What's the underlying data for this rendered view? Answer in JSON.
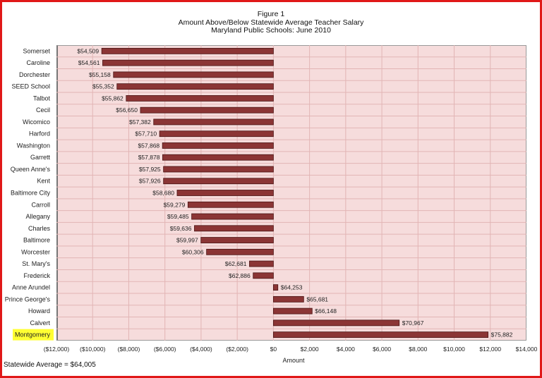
{
  "chart_data": {
    "type": "bar",
    "orientation": "horizontal",
    "title": "Figure 1",
    "subtitle": [
      "Amount Above/Below Statewide Average Teacher Salary",
      "Maryland Public Schools:  June 2010"
    ],
    "xlabel": "Amount",
    "ylabel": "",
    "xlim": [
      -12000,
      14000
    ],
    "xticks": [
      -12000,
      -10000,
      -8000,
      -6000,
      -4000,
      -2000,
      0,
      2000,
      4000,
      6000,
      8000,
      10000,
      12000,
      14000
    ],
    "xtick_labels": [
      "($12,000)",
      "($10,000)",
      "($8,000)",
      "($6,000)",
      "($4,000)",
      "($2,000)",
      "$0",
      "$2,000",
      "$4,000",
      "$6,000",
      "$8,000",
      "$10,000",
      "$12,000",
      "$14,000"
    ],
    "grid": true,
    "categories": [
      "Somerset",
      "Caroline",
      "Dorchester",
      "SEED School",
      "Talbot",
      "Cecil",
      "Wicomico",
      "Harford",
      "Washington",
      "Garrett",
      "Queen Anne's",
      "Kent",
      "Baltimore City",
      "Carroll",
      "Allegany",
      "Charles",
      "Baltimore",
      "Worcester",
      "St. Mary's",
      "Frederick",
      "Anne Arundel",
      "Prince George's",
      "Howard",
      "Calvert",
      "Montgomery"
    ],
    "values": [
      -9496,
      -9444,
      -8847,
      -8653,
      -8143,
      -7355,
      -6623,
      -6295,
      -6137,
      -6127,
      -6080,
      -6079,
      -5325,
      -4726,
      -4520,
      -4369,
      -4008,
      -3699,
      -1324,
      -1119,
      248,
      1676,
      2143,
      6962,
      11877
    ],
    "data_labels": [
      "$54,509",
      "$54,561",
      "$55,158",
      "$55,352",
      "$55,862",
      "$56,650",
      "$57,382",
      "$57,710",
      "$57,868",
      "$57,878",
      "$57,925",
      "$57,926",
      "$58,680",
      "$59,279",
      "$59,485",
      "$59,636",
      "$59,997",
      "$60,306",
      "$62,681",
      "$62,886",
      "$64,253",
      "$65,681",
      "$66,148",
      "$70,967",
      "$75,882"
    ],
    "highlighted_category": "Montgomery",
    "colors": {
      "bar": "#8b3535",
      "bar_border": "#4a1414",
      "plot_bg": "#f6dcdc",
      "grid": "#e2b5b5",
      "highlight": "#ffff33",
      "frame": "#e01818"
    }
  },
  "footnote": "Statewide Average = $64,005"
}
